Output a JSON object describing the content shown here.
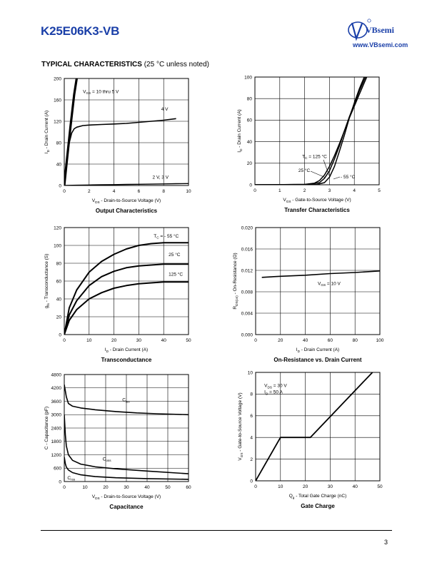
{
  "header": {
    "part_number": "K25E06K3-VB",
    "brand": "VBsemi",
    "url": "www.VBsemi.com",
    "section_title_bold": "TYPICAL CHARACTERISTICS",
    "section_title_note": " (25 °C unless noted)"
  },
  "footer": {
    "page": "3"
  },
  "colors": {
    "brand": "#1a3fa8",
    "curve": "#000000",
    "grid": "#000000"
  },
  "chart_data": [
    {
      "id": "output",
      "type": "line",
      "title": "Output Characteristics",
      "xlabel_main": "V",
      "xlabel_sub": "DS",
      "xlabel_rest": " - Drain-to-Source Voltage (V)",
      "ylabel_main": "I",
      "ylabel_sub": "D",
      "ylabel_rest": " - Drain Current (A)",
      "xlim": [
        0,
        10
      ],
      "ylim": [
        0,
        200
      ],
      "xticks": [
        "0",
        "2",
        "4",
        "6",
        "8",
        "10"
      ],
      "yticks": [
        "0",
        "40",
        "80",
        "120",
        "160",
        "200"
      ],
      "series": [
        {
          "name": "VGS = 10 thru 5 V",
          "x": [
            0,
            0.2,
            0.5,
            0.8,
            1.0
          ],
          "y": [
            0,
            45,
            110,
            170,
            200
          ]
        },
        {
          "name": "4 V",
          "x": [
            0,
            0.2,
            0.4,
            0.6,
            0.8,
            1.0,
            1.5,
            2,
            3,
            4,
            5,
            6,
            7,
            8,
            9
          ],
          "y": [
            0,
            45,
            80,
            98,
            106,
            109,
            112,
            113,
            114,
            115,
            116,
            118,
            120,
            122,
            125
          ]
        },
        {
          "name": "2 V, 3 V",
          "x": [
            0,
            1,
            2,
            3,
            4,
            5,
            6,
            7,
            8,
            9,
            10
          ],
          "y": [
            0,
            0.5,
            1,
            1.3,
            1.6,
            2,
            2.3,
            2.6,
            3,
            3.3,
            3.6
          ]
        }
      ],
      "annotations": [
        {
          "text_main": "V",
          "text_sub": "GS",
          "text_rest": " = 10 thru 5 V",
          "x": 1.5,
          "y": 173
        },
        {
          "text_main": "4 V",
          "text_sub": "",
          "text_rest": "",
          "x": 7.8,
          "y": 140
        },
        {
          "text_main": "2 V, 3 V",
          "text_sub": "",
          "text_rest": "",
          "x": 7.1,
          "y": 13
        }
      ]
    },
    {
      "id": "transfer",
      "type": "line",
      "title": "Transfer Characteristics",
      "xlabel_main": "V",
      "xlabel_sub": "GS",
      "xlabel_rest": " - Gate-to-Source Voltage (V)",
      "ylabel_main": "I",
      "ylabel_sub": "D",
      "ylabel_rest": " - Drain Current (A)",
      "xlim": [
        0,
        5
      ],
      "ylim": [
        0,
        100
      ],
      "xticks": [
        "0",
        "1",
        "2",
        "3",
        "4",
        "5"
      ],
      "yticks": [
        "0",
        "20",
        "40",
        "60",
        "80",
        "100"
      ],
      "series": [
        {
          "name": "TC = 125 °C",
          "x": [
            0,
            2.0,
            2.4,
            2.6,
            2.8,
            3.0,
            3.2,
            3.4,
            3.6,
            3.8,
            4.0,
            4.2,
            4.5
          ],
          "y": [
            0,
            0.3,
            1.5,
            4,
            9,
            17,
            27,
            38,
            50,
            62,
            73,
            84,
            100
          ]
        },
        {
          "name": "25 °C",
          "x": [
            0,
            2.2,
            2.6,
            2.8,
            3.0,
            3.2,
            3.4,
            3.6,
            3.8,
            4.0,
            4.2,
            4.45
          ],
          "y": [
            0,
            0.3,
            2,
            6,
            13,
            24,
            36,
            50,
            63,
            75,
            87,
            100
          ]
        },
        {
          "name": "- 55 °C",
          "x": [
            0,
            2.5,
            2.8,
            3.0,
            3.2,
            3.4,
            3.6,
            3.8,
            4.0,
            4.2,
            4.4
          ],
          "y": [
            0,
            0.3,
            2,
            7,
            17,
            31,
            46,
            62,
            76,
            89,
            100
          ]
        }
      ],
      "annotations": [
        {
          "text_main": "T",
          "text_sub": "C",
          "text_rest": " = 125 °C",
          "x": 1.9,
          "y": 25
        },
        {
          "text_main": "25 °C",
          "text_sub": "",
          "text_rest": "",
          "x": 1.75,
          "y": 12
        },
        {
          "text_main": "- 55 °C",
          "text_sub": "",
          "text_rest": "",
          "x": 3.45,
          "y": 6
        }
      ]
    },
    {
      "id": "transconductance",
      "type": "line",
      "title": "Transconductance",
      "xlabel_main": "I",
      "xlabel_sub": "D",
      "xlabel_rest": " - Drain Current (A)",
      "ylabel_main": "g",
      "ylabel_sub": "fs",
      "ylabel_rest": " - Transconductance (S)",
      "xlim": [
        0,
        50
      ],
      "ylim": [
        0,
        120
      ],
      "xticks": [
        "0",
        "10",
        "20",
        "30",
        "40",
        "50"
      ],
      "yticks": [
        "0",
        "20",
        "40",
        "60",
        "80",
        "100",
        "120"
      ],
      "series": [
        {
          "name": "TC = - 55 °C",
          "x": [
            0,
            2,
            5,
            10,
            15,
            20,
            25,
            30,
            35,
            40,
            45,
            50
          ],
          "y": [
            0,
            30,
            50,
            70,
            82,
            90,
            96,
            100,
            102,
            103,
            103,
            103
          ]
        },
        {
          "name": "25 °C",
          "x": [
            0,
            2,
            5,
            10,
            15,
            20,
            25,
            30,
            35,
            40,
            45,
            50
          ],
          "y": [
            0,
            22,
            38,
            55,
            65,
            71,
            75,
            77,
            78,
            79,
            79,
            79
          ]
        },
        {
          "name": "125 °C",
          "x": [
            0,
            2,
            5,
            10,
            15,
            20,
            25,
            30,
            35,
            40,
            45,
            50
          ],
          "y": [
            0,
            16,
            28,
            40,
            47,
            52,
            55,
            57,
            58,
            59,
            59,
            59
          ]
        }
      ],
      "annotations": [
        {
          "text_main": "T",
          "text_sub": "C",
          "text_rest": " = - 55 °C",
          "x": 36,
          "y": 109
        },
        {
          "text_main": "25 °C",
          "text_sub": "",
          "text_rest": "",
          "x": 42,
          "y": 88
        },
        {
          "text_main": "125 °C",
          "text_sub": "",
          "text_rest": "",
          "x": 42,
          "y": 66
        }
      ]
    },
    {
      "id": "onres",
      "type": "line",
      "title": "On-Resistance vs. Drain Current",
      "xlabel_main": "I",
      "xlabel_sub": "D",
      "xlabel_rest": " - Drain Current (A)",
      "ylabel_main": "R",
      "ylabel_sub": "DS(on)",
      "ylabel_rest": " - On-Resistance (Ω)",
      "xlim": [
        0,
        100
      ],
      "ylim": [
        0,
        0.02
      ],
      "xticks": [
        "0",
        "20",
        "40",
        "60",
        "80",
        "100"
      ],
      "yticks": [
        "0.000",
        "0.004",
        "0.008",
        "0.012",
        "0.016",
        "0.020"
      ],
      "series": [
        {
          "name": "VGS = 10 V",
          "x": [
            5,
            20,
            40,
            60,
            80,
            100
          ],
          "y": [
            0.0107,
            0.0109,
            0.0111,
            0.0114,
            0.0116,
            0.0119
          ]
        }
      ],
      "annotations": [
        {
          "text_main": "V",
          "text_sub": "GS",
          "text_rest": " = 10 V",
          "x": 50,
          "y": 0.0093
        }
      ]
    },
    {
      "id": "capacitance",
      "type": "line",
      "title": "Capacitance",
      "xlabel_main": "V",
      "xlabel_sub": "DS",
      "xlabel_rest": " - Drain-to-Source Voltage (V)",
      "ylabel_main": "C",
      "ylabel_sub": "",
      "ylabel_rest": " - Capacitance (pF)",
      "xlim": [
        0,
        60
      ],
      "ylim": [
        0,
        4800
      ],
      "xticks": [
        "0",
        "10",
        "20",
        "30",
        "40",
        "50",
        "60"
      ],
      "yticks": [
        "0",
        "600",
        "1200",
        "1800",
        "2400",
        "3000",
        "3600",
        "4200",
        "4800"
      ],
      "series": [
        {
          "name": "Ciss",
          "x": [
            0,
            1,
            2,
            4,
            8,
            15,
            25,
            35,
            45,
            60
          ],
          "y": [
            4350,
            3800,
            3500,
            3380,
            3300,
            3220,
            3140,
            3080,
            3040,
            3000
          ]
        },
        {
          "name": "Coss",
          "x": [
            0,
            0.5,
            1,
            2,
            4,
            8,
            15,
            25,
            40,
            60
          ],
          "y": [
            3000,
            2100,
            1600,
            1200,
            950,
            780,
            660,
            570,
            470,
            350
          ]
        },
        {
          "name": "Crss",
          "x": [
            0,
            0.5,
            1,
            2,
            4,
            8,
            15,
            25,
            40,
            60
          ],
          "y": [
            1100,
            800,
            650,
            520,
            400,
            300,
            220,
            170,
            130,
            100
          ]
        }
      ],
      "annotations": [
        {
          "text_main": "C",
          "text_sub": "iss",
          "text_rest": "",
          "x": 28,
          "y": 3600
        },
        {
          "text_main": "C",
          "text_sub": "oss",
          "text_rest": "",
          "x": 18.5,
          "y": 950
        },
        {
          "text_main": "C",
          "text_sub": "rss",
          "text_rest": "",
          "x": 1.5,
          "y": 100
        }
      ]
    },
    {
      "id": "gatecharge",
      "type": "line",
      "title": "Gate Charge",
      "xlabel_main": "Q",
      "xlabel_sub": "g",
      "xlabel_rest": " - Total Gate Charge (nC)",
      "ylabel_main": "V",
      "ylabel_sub": "GS",
      "ylabel_rest": " - Gate-to-Source Voltage (V)",
      "xlim": [
        0,
        50
      ],
      "ylim": [
        0,
        10
      ],
      "xticks": [
        "0",
        "10",
        "20",
        "30",
        "40",
        "50"
      ],
      "yticks": [
        "0",
        "2",
        "4",
        "6",
        "8",
        "10"
      ],
      "series": [
        {
          "name": "VGS",
          "x": [
            0,
            10,
            22,
            47
          ],
          "y": [
            0,
            4,
            4,
            10
          ]
        }
      ],
      "annotations": [
        {
          "text_main": "V",
          "text_sub": "DS",
          "text_rest": " = 30 V",
          "x": 3.5,
          "y": 8.65
        },
        {
          "text_main": "I",
          "text_sub": "D",
          "text_rest": " = 50 A",
          "x": 3.5,
          "y": 8.05
        }
      ]
    }
  ]
}
